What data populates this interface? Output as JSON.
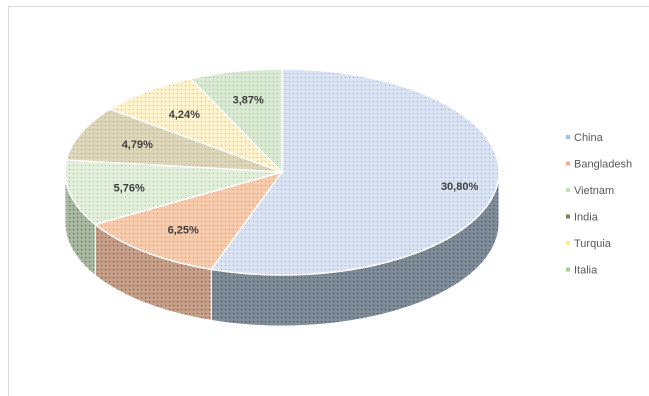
{
  "chart_data": {
    "type": "pie",
    "style": "3d",
    "categories": [
      "China",
      "Bangladesh",
      "Vietnam",
      "India",
      "Turquia",
      "Italia"
    ],
    "values": [
      30.8,
      6.25,
      5.76,
      4.79,
      4.24,
      3.87
    ],
    "labels": [
      "30,80%",
      "6,25%",
      "5,76%",
      "4,79%",
      "4,24%",
      "3,87%"
    ],
    "legend_position": "right",
    "colors": {
      "China": "#dae3f3",
      "Bangladesh": "#f8cbad",
      "Vietnam": "#e2efda",
      "India": "#ded6b8",
      "Turquia": "#fff2cc",
      "Italia": "#d9ead3"
    },
    "side_colors": {
      "China": "#7f8c99",
      "Bangladesh": "#c7a08a",
      "Vietnam": "#a9b8a0",
      "India": "#8e866c",
      "Turquia": "#c9bd8c",
      "Italia": "#a3b59a"
    },
    "legend_colors": {
      "China": "#9dc3e6",
      "Bangladesh": "#f4b183",
      "Vietnam": "#c9e0b4",
      "India": "#7f7f5f",
      "Turquia": "#ffe699",
      "Italia": "#a9d18e"
    }
  }
}
